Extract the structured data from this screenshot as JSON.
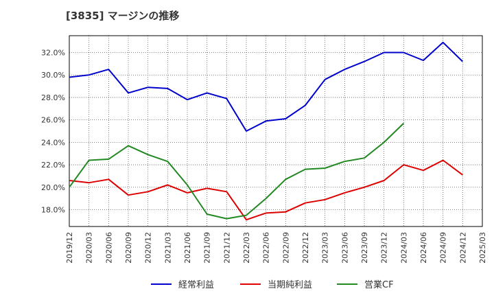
{
  "chart_data": {
    "type": "line",
    "title": "[3835]  マージンの推移",
    "xlabel": "",
    "ylabel": "",
    "ylim": [
      16.5,
      33.5
    ],
    "yticks": [
      "18.0%",
      "20.0%",
      "22.0%",
      "24.0%",
      "26.0%",
      "28.0%",
      "30.0%",
      "32.0%"
    ],
    "ytick_values": [
      18,
      20,
      22,
      24,
      26,
      28,
      30,
      32
    ],
    "x": [
      "2019/12",
      "2020/03",
      "2020/06",
      "2020/09",
      "2020/12",
      "2021/03",
      "2021/06",
      "2021/09",
      "2021/12",
      "2022/03",
      "2022/06",
      "2022/09",
      "2022/12",
      "2023/03",
      "2023/06",
      "2023/09",
      "2023/12",
      "2024/03",
      "2024/06",
      "2024/09",
      "2024/12",
      "2025/03"
    ],
    "grid": true,
    "legend_position": "bottom",
    "series": [
      {
        "name": "経常利益",
        "color": "#0000cc",
        "values": [
          29.8,
          30.0,
          30.5,
          28.4,
          28.9,
          28.8,
          27.8,
          28.4,
          27.9,
          25.0,
          25.9,
          26.1,
          27.3,
          29.6,
          30.5,
          31.2,
          32.0,
          32.0,
          31.3,
          32.9,
          31.2,
          null
        ]
      },
      {
        "name": "当期純利益",
        "color": "#dd0000",
        "values": [
          20.6,
          20.4,
          20.7,
          19.3,
          19.6,
          20.2,
          19.5,
          19.9,
          19.6,
          17.1,
          17.7,
          17.8,
          18.6,
          18.9,
          19.5,
          20.0,
          20.6,
          22.0,
          21.5,
          22.4,
          21.1,
          null
        ]
      },
      {
        "name": "営業CF",
        "color": "#228822",
        "values": [
          20.0,
          22.4,
          22.5,
          23.7,
          22.9,
          22.3,
          20.2,
          17.6,
          17.2,
          17.5,
          19.0,
          20.7,
          21.6,
          21.7,
          22.3,
          22.6,
          24.0,
          25.7,
          null,
          null,
          null,
          null
        ]
      }
    ]
  }
}
